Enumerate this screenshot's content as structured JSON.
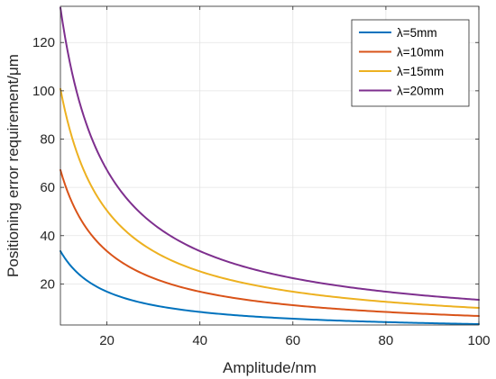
{
  "chart_data": {
    "type": "line",
    "xlabel": "Amplitude/nm",
    "ylabel": "Positioning error requirement/μm",
    "xlim": [
      10,
      100
    ],
    "ylim": [
      3,
      135
    ],
    "xticks": [
      20,
      40,
      60,
      80,
      100
    ],
    "yticks": [
      20,
      40,
      60,
      80,
      100,
      120
    ],
    "grid": true,
    "legend_position": "top-right",
    "x": [
      10,
      12,
      14,
      16,
      18,
      20,
      25,
      30,
      35,
      40,
      45,
      50,
      55,
      60,
      65,
      70,
      75,
      80,
      85,
      90,
      95,
      100
    ],
    "series": [
      {
        "name": "λ=5mm",
        "color": "#0072BD",
        "values": [
          33.6,
          28.0,
          24.0,
          21.0,
          18.7,
          16.8,
          13.4,
          11.2,
          9.6,
          8.4,
          7.5,
          6.7,
          6.1,
          5.6,
          5.2,
          4.8,
          4.5,
          4.2,
          4.0,
          3.7,
          3.5,
          3.4
        ]
      },
      {
        "name": "λ=10mm",
        "color": "#D95319",
        "values": [
          67.2,
          56.0,
          48.0,
          42.0,
          37.3,
          33.6,
          26.9,
          22.4,
          19.2,
          16.8,
          14.9,
          13.4,
          12.2,
          11.2,
          10.3,
          9.6,
          9.0,
          8.4,
          7.9,
          7.5,
          7.1,
          6.7
        ]
      },
      {
        "name": "λ=15mm",
        "color": "#EDB120",
        "values": [
          100.8,
          84.0,
          72.0,
          63.0,
          56.0,
          50.4,
          40.3,
          33.6,
          28.8,
          25.2,
          22.4,
          20.2,
          18.3,
          16.8,
          15.5,
          14.4,
          13.4,
          12.6,
          11.9,
          11.2,
          10.6,
          10.1
        ]
      },
      {
        "name": "λ=20mm",
        "color": "#7E2F8E",
        "values": [
          134.4,
          112.0,
          96.0,
          84.0,
          74.7,
          67.2,
          53.8,
          44.8,
          38.4,
          33.6,
          29.9,
          26.9,
          24.4,
          22.4,
          20.7,
          19.2,
          17.9,
          16.8,
          15.8,
          14.9,
          14.1,
          13.4
        ]
      }
    ]
  }
}
